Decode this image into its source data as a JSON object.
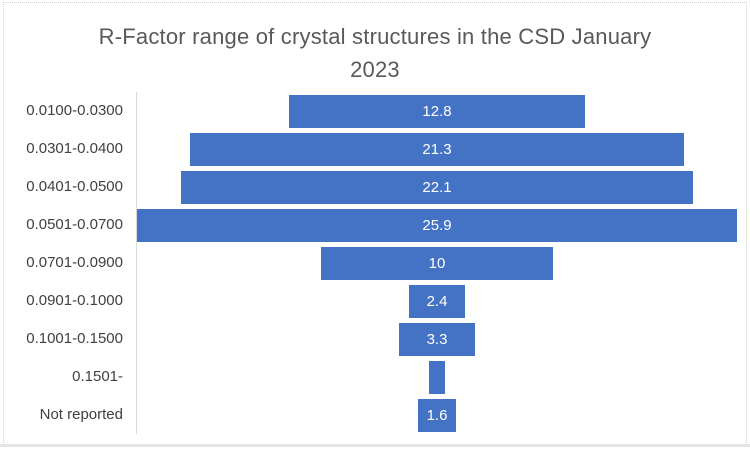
{
  "chart_data": {
    "type": "bar",
    "variant": "horizontal-centered-funnel",
    "title": "R-Factor range of crystal structures in the CSD January 2023",
    "title_lines": [
      "R-Factor range of crystal structures in the CSD January",
      "2023"
    ],
    "categories": [
      "0.0100-0.0300",
      "0.0301-0.0400",
      "0.0401-0.0500",
      "0.0501-0.0700",
      "0.0701-0.0900",
      "0.0901-0.1000",
      "0.1001-0.1500",
      "0.1501-",
      "Not reported"
    ],
    "values": [
      12.8,
      21.3,
      22.1,
      25.9,
      10,
      2.4,
      3.3,
      0.7,
      1.6
    ],
    "data_labels": [
      "12.8",
      "21.3",
      "22.1",
      "25.9",
      "10",
      "2.4",
      "3.3",
      "",
      "1.6"
    ],
    "xlim": [
      0,
      25.9
    ],
    "grid": false,
    "legend": "none",
    "colors": {
      "bar": "#4472C4",
      "bar_label": "#ffffff",
      "title": "#595959",
      "category_label": "#404040",
      "axis_line": "#d9d9d9",
      "frame_border": "#d2d2d2",
      "bottom_strip": "#e5e5e5"
    }
  }
}
